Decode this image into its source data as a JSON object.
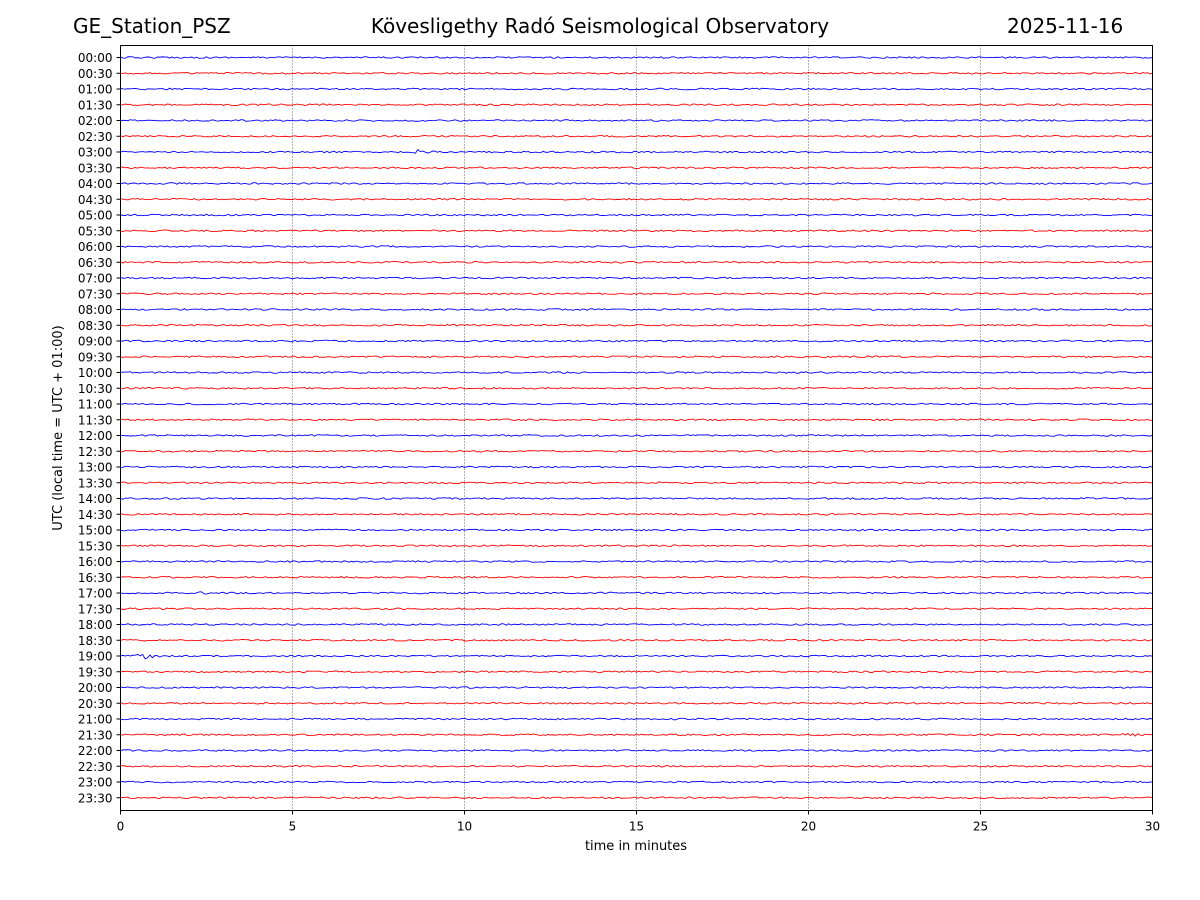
{
  "header": {
    "station": "GE_Station_PSZ",
    "observatory": "Kövesligethy Radó Seismological Observatory",
    "date": "2025-11-16"
  },
  "chart_data": {
    "type": "line",
    "xlabel": "time in minutes",
    "ylabel": "UTC (local time = UTC + 01:00)",
    "xlim": [
      0,
      30
    ],
    "x_ticks": [
      0,
      5,
      10,
      15,
      20,
      25,
      30
    ],
    "grid": "vertical dotted lines at 5-minute ticks",
    "colors": {
      "even_rows": "#0000ff",
      "odd_rows": "#ff0000"
    },
    "rows": [
      "00:00",
      "00:30",
      "01:00",
      "01:30",
      "02:00",
      "02:30",
      "03:00",
      "03:30",
      "04:00",
      "04:30",
      "05:00",
      "05:30",
      "06:00",
      "06:30",
      "07:00",
      "07:30",
      "08:00",
      "08:30",
      "09:00",
      "09:30",
      "10:00",
      "10:30",
      "11:00",
      "11:30",
      "12:00",
      "12:30",
      "13:00",
      "13:30",
      "14:00",
      "14:30",
      "15:00",
      "15:30",
      "16:00",
      "16:30",
      "17:00",
      "17:30",
      "18:00",
      "18:30",
      "19:00",
      "19:30",
      "20:00",
      "20:30",
      "21:00",
      "21:30",
      "22:00",
      "22:30",
      "23:00",
      "23:30"
    ],
    "events": [
      {
        "row": "03:00",
        "minute": 8.7,
        "strength": 3
      },
      {
        "row": "17:00",
        "minute": 2.3,
        "strength": 1
      },
      {
        "row": "19:00",
        "minute": 0.8,
        "strength": 4
      },
      {
        "row": "21:30",
        "minute": 29.4,
        "strength": 2
      }
    ]
  }
}
